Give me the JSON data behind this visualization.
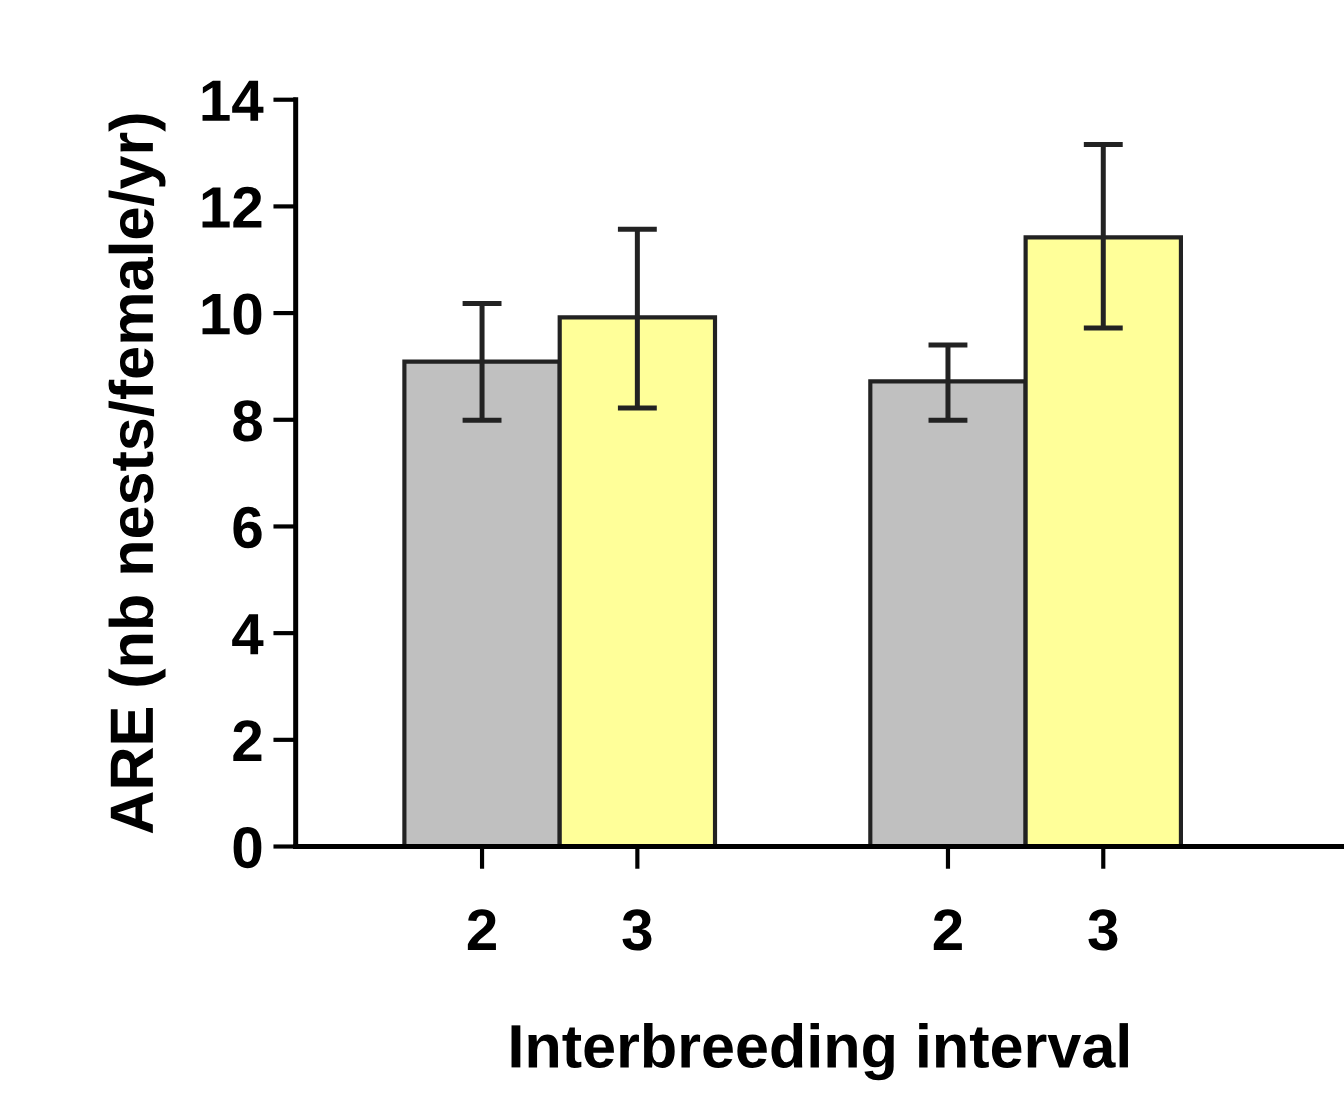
{
  "chart_data": {
    "type": "bar",
    "xlabel": "Interbreeding interval",
    "ylabel": "ARE (nb nests/female/yr)",
    "categories": [
      "2",
      "3",
      null,
      "2",
      "3"
    ],
    "values": [
      9.09,
      9.92,
      null,
      8.72,
      11.42
    ],
    "colors": [
      "#c0c0c0",
      "#ffff99",
      null,
      "#c0c0c0",
      "#ffff99"
    ],
    "errors": [
      [
        7.99,
        10.18
      ],
      [
        8.22,
        11.57
      ],
      null,
      [
        7.99,
        9.4
      ],
      [
        9.72,
        13.16
      ]
    ],
    "ylim": [
      0,
      14
    ],
    "yticks": [
      0,
      2,
      4,
      6,
      8,
      10,
      12,
      14
    ],
    "grid": false,
    "legend": false
  }
}
